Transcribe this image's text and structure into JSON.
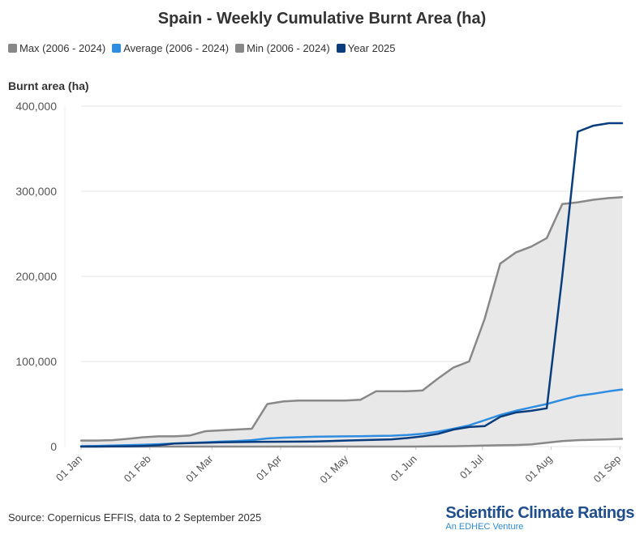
{
  "chart_data": {
    "type": "line",
    "title": "Spain - Weekly Cumulative Burnt Area (ha)",
    "xlabel": "",
    "ylabel": "Burnt area (ha)",
    "ylim": [
      0,
      400000
    ],
    "yticks": [
      0,
      100000,
      200000,
      300000,
      400000
    ],
    "ytick_labels": [
      "0",
      "100,000",
      "200,000",
      "300,000",
      "400,000"
    ],
    "x_range": [
      "2025-01-01",
      "2025-09-02"
    ],
    "xtick_labels": [
      "01 Jan",
      "01 Feb",
      "01 Mar",
      "01 Apr",
      "01 May",
      "01 Jun",
      "01 Jul",
      "01 Aug",
      "01 Sep"
    ],
    "grid": "horizontal",
    "legend_position": "top-left",
    "x": [
      "01-01",
      "01-08",
      "01-15",
      "01-22",
      "01-29",
      "02-05",
      "02-12",
      "02-19",
      "02-26",
      "03-05",
      "03-12",
      "03-19",
      "03-26",
      "04-02",
      "04-09",
      "04-16",
      "04-23",
      "04-30",
      "05-07",
      "05-14",
      "05-21",
      "05-28",
      "06-04",
      "06-11",
      "06-18",
      "06-25",
      "07-02",
      "07-09",
      "07-16",
      "07-23",
      "07-30",
      "08-06",
      "08-13",
      "08-20",
      "08-27",
      "09-02"
    ],
    "series": [
      {
        "name": "Max (2006 - 2024)",
        "color": "#888888",
        "values": [
          7000,
          7000,
          7500,
          9000,
          11000,
          12000,
          12000,
          13000,
          18000,
          19000,
          20000,
          21000,
          50000,
          53000,
          54000,
          54000,
          54000,
          54000,
          55000,
          65000,
          65000,
          65000,
          66000,
          80000,
          93000,
          100000,
          150000,
          215000,
          228000,
          235000,
          245000,
          285000,
          287000,
          290000,
          292000,
          293000
        ]
      },
      {
        "name": "Average (2006 - 2024)",
        "color": "#2e8de0",
        "values": [
          500,
          800,
          1200,
          1700,
          2200,
          2800,
          3500,
          4300,
          5000,
          5800,
          6500,
          7500,
          9500,
          10500,
          11000,
          11500,
          11800,
          12000,
          12200,
          12500,
          12800,
          13500,
          15000,
          17500,
          21000,
          25000,
          31000,
          37000,
          42000,
          46000,
          50000,
          55000,
          59500,
          62000,
          65000,
          67000
        ]
      },
      {
        "name": "Min (2006 - 2024)",
        "color": "#888888",
        "values": [
          0,
          0,
          0,
          0,
          0,
          0,
          0,
          0,
          0,
          0,
          0,
          0,
          0,
          0,
          0,
          0,
          0,
          0,
          0,
          0,
          0,
          0,
          100,
          200,
          400,
          800,
          1200,
          1500,
          1800,
          2500,
          4500,
          6500,
          7500,
          8000,
          8500,
          9000
        ]
      },
      {
        "name": "Year 2025",
        "color": "#0a3d7e",
        "values": [
          0,
          0,
          200,
          400,
          800,
          1500,
          3500,
          4000,
          4500,
          5000,
          5200,
          5500,
          5600,
          5700,
          5800,
          6000,
          6500,
          7000,
          7500,
          8000,
          8500,
          10000,
          12000,
          15000,
          20000,
          23000,
          24000,
          35000,
          40000,
          42000,
          45000,
          200000,
          370000,
          377000,
          380000,
          380000
        ]
      }
    ]
  },
  "footer": {
    "source": "Source: Copernicus EFFIS, data to 2 September 2025",
    "brand_name": "Scientific Climate Ratings",
    "brand_sub": "An EDHEC Venture"
  }
}
